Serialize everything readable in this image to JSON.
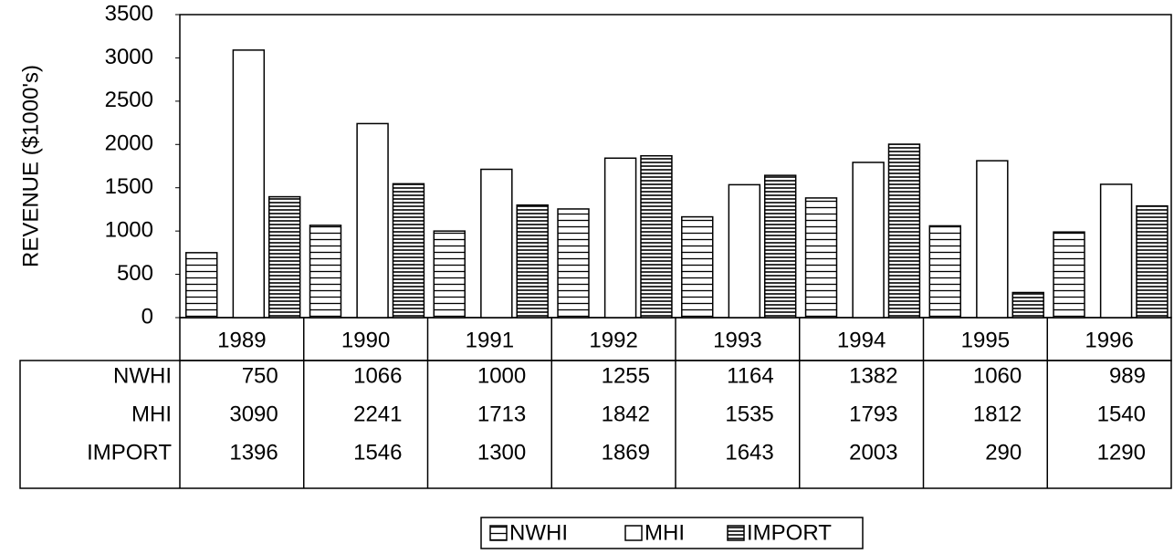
{
  "chart_data": {
    "type": "bar",
    "y_label": "REVENUE ($1000's)",
    "categories": [
      "1989",
      "1990",
      "1991",
      "1992",
      "1993",
      "1994",
      "1995",
      "1996"
    ],
    "series": [
      {
        "name": "NWHI",
        "values": [
          750,
          1066,
          1000,
          1255,
          1164,
          1382,
          1060,
          989
        ]
      },
      {
        "name": "MHI",
        "values": [
          3090,
          2241,
          1713,
          1842,
          1535,
          1793,
          1812,
          1540
        ]
      },
      {
        "name": "IMPORT",
        "values": [
          1396,
          1546,
          1300,
          1869,
          1643,
          2003,
          290,
          1290
        ]
      }
    ],
    "ylim": [
      0,
      3500
    ],
    "yticks": [
      0,
      500,
      1000,
      1500,
      2000,
      2500,
      3000,
      3500
    ]
  }
}
